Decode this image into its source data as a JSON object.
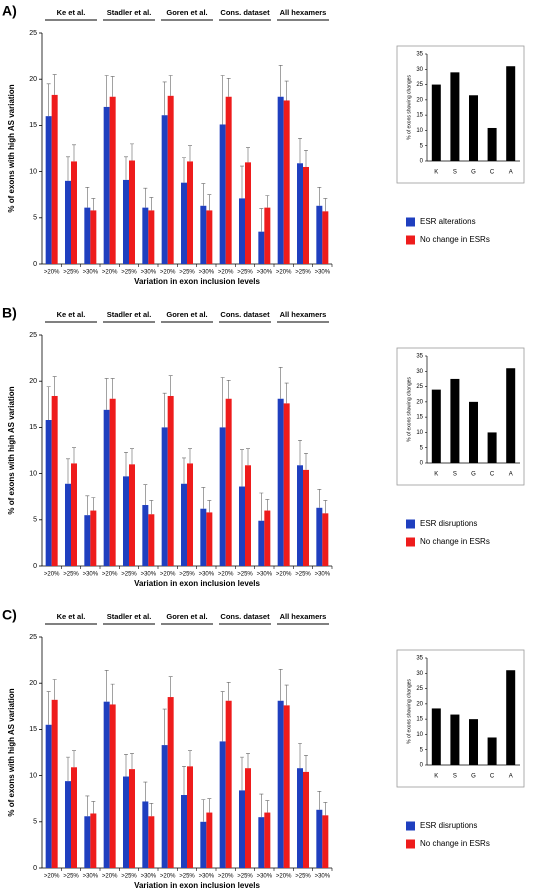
{
  "chart_data": [
    {
      "type": "grouped_bar",
      "panel_label": "A)",
      "y_label": "% of exons with high AS variation",
      "x_label": "Variation in exon inclusion levels",
      "groups": [
        "Ke et al.",
        "Stadler et al.",
        "Goren et al.",
        "Cons. dataset",
        "All hexamers"
      ],
      "categories": [
        ">20%",
        ">25%",
        ">30%",
        ">20%",
        ">25%",
        ">30%",
        ">20%",
        ">25%",
        ">30%",
        ">20%",
        ">25%",
        ">30%",
        ">20%",
        ">25%",
        ">30%"
      ],
      "series": [
        {
          "name": "ESR alterations",
          "color": "#1f3fbf",
          "values": [
            16.0,
            9.0,
            6.1,
            17.0,
            9.1,
            6.1,
            16.1,
            8.8,
            6.3,
            15.1,
            7.1,
            3.5,
            18.1,
            10.9,
            6.3
          ],
          "errors": [
            3.5,
            2.6,
            2.2,
            3.4,
            2.5,
            2.1,
            3.6,
            2.7,
            2.4,
            5.3,
            3.5,
            2.5,
            3.4,
            2.7,
            2.0
          ]
        },
        {
          "name": "No change in ESRs",
          "color": "#ee1c1c",
          "values": [
            18.3,
            11.1,
            5.8,
            18.1,
            11.2,
            5.8,
            18.2,
            11.1,
            5.8,
            18.1,
            11.0,
            6.1,
            17.7,
            10.5,
            5.7
          ],
          "errors": [
            2.2,
            1.8,
            1.3,
            2.2,
            1.8,
            1.4,
            2.2,
            1.7,
            1.7,
            2.0,
            1.6,
            1.3,
            2.1,
            1.8,
            1.4
          ]
        }
      ],
      "ylim": [
        0,
        25
      ],
      "yticks": [
        0,
        5,
        10,
        15,
        20,
        25
      ]
    },
    {
      "type": "bar",
      "y_label": "% of exons showing changes",
      "categories": [
        "K",
        "S",
        "G",
        "C",
        "A"
      ],
      "values": [
        25,
        29,
        21.5,
        10.8,
        31
      ],
      "color": "#000000",
      "ylim": [
        0,
        35
      ],
      "yticks": [
        0,
        5,
        10,
        15,
        20,
        25,
        30,
        35
      ]
    },
    {
      "type": "grouped_bar",
      "panel_label": "B)",
      "y_label": "% of exons with high AS variation",
      "x_label": "Variation in exon inclusion levels",
      "groups": [
        "Ke et al.",
        "Stadler et al.",
        "Goren et al.",
        "Cons. dataset",
        "All hexamers"
      ],
      "categories": [
        ">20%",
        ">25%",
        ">30%",
        ">20%",
        ">25%",
        ">30%",
        ">20%",
        ">25%",
        ">30%",
        ">20%",
        ">25%",
        ">30%",
        ">20%",
        ">25%",
        ">30%"
      ],
      "series": [
        {
          "name": "ESR disruptions",
          "color": "#1f3fbf",
          "values": [
            15.8,
            8.9,
            5.5,
            16.9,
            9.7,
            6.6,
            15.0,
            8.9,
            6.2,
            15.0,
            8.6,
            4.9,
            18.1,
            10.9,
            6.3
          ],
          "errors": [
            3.6,
            2.7,
            2.1,
            3.4,
            2.6,
            2.2,
            3.7,
            2.8,
            2.3,
            5.4,
            4.0,
            3.0,
            3.4,
            2.7,
            2.0
          ]
        },
        {
          "name": "No change in ESRs",
          "color": "#ee1c1c",
          "values": [
            18.4,
            11.1,
            6.0,
            18.1,
            11.0,
            5.6,
            18.4,
            11.1,
            5.8,
            18.1,
            10.9,
            6.0,
            17.6,
            10.4,
            5.7
          ],
          "errors": [
            2.1,
            1.7,
            1.4,
            2.2,
            1.7,
            1.5,
            2.2,
            1.6,
            1.3,
            2.0,
            1.8,
            1.2,
            2.2,
            1.8,
            1.4
          ]
        }
      ],
      "ylim": [
        0,
        25
      ],
      "yticks": [
        0,
        5,
        10,
        15,
        20,
        25
      ]
    },
    {
      "type": "bar",
      "y_label": "% of exons showing changes",
      "categories": [
        "K",
        "S",
        "G",
        "C",
        "A"
      ],
      "values": [
        24,
        27.5,
        20,
        10,
        31
      ],
      "color": "#000000",
      "ylim": [
        0,
        35
      ],
      "yticks": [
        0,
        5,
        10,
        15,
        20,
        25,
        30,
        35
      ]
    },
    {
      "type": "grouped_bar",
      "panel_label": "C)",
      "y_label": "% of exons with high AS variation",
      "x_label": "Variation in exon inclusion levels",
      "groups": [
        "Ke et al.",
        "Stadler et al.",
        "Goren et al.",
        "Cons. dataset",
        "All hexamers"
      ],
      "categories": [
        ">20%",
        ">25%",
        ">30%",
        ">20%",
        ">25%",
        ">30%",
        ">20%",
        ">25%",
        ">30%",
        ">20%",
        ">25%",
        ">30%",
        ">20%",
        ">25%",
        ">30%"
      ],
      "series": [
        {
          "name": "ESR disruptions",
          "color": "#1f3fbf",
          "values": [
            15.5,
            9.4,
            5.6,
            18.0,
            9.9,
            7.2,
            13.3,
            7.9,
            5.0,
            13.7,
            8.4,
            5.5,
            18.1,
            10.8,
            6.3
          ],
          "errors": [
            3.6,
            2.6,
            2.2,
            3.4,
            2.4,
            2.1,
            3.9,
            3.1,
            2.4,
            5.4,
            3.6,
            2.5,
            3.4,
            2.7,
            2.0
          ]
        },
        {
          "name": "No change in ESRs",
          "color": "#ee1c1c",
          "values": [
            18.2,
            10.9,
            5.9,
            17.7,
            10.7,
            5.6,
            18.5,
            11.0,
            6.0,
            18.1,
            10.8,
            6.0,
            17.6,
            10.4,
            5.7
          ],
          "errors": [
            2.2,
            1.8,
            1.3,
            2.2,
            1.7,
            1.4,
            2.2,
            1.7,
            1.5,
            2.0,
            1.6,
            1.3,
            2.2,
            1.8,
            1.4
          ]
        }
      ],
      "ylim": [
        0,
        25
      ],
      "yticks": [
        0,
        5,
        10,
        15,
        20,
        25
      ]
    },
    {
      "type": "bar",
      "y_label": "% of exons showing changes",
      "categories": [
        "K",
        "S",
        "G",
        "C",
        "A"
      ],
      "values": [
        18.5,
        16.5,
        15,
        9,
        31
      ],
      "color": "#000000",
      "ylim": [
        0,
        35
      ],
      "yticks": [
        0,
        5,
        10,
        15,
        20,
        25,
        30,
        35
      ]
    }
  ]
}
